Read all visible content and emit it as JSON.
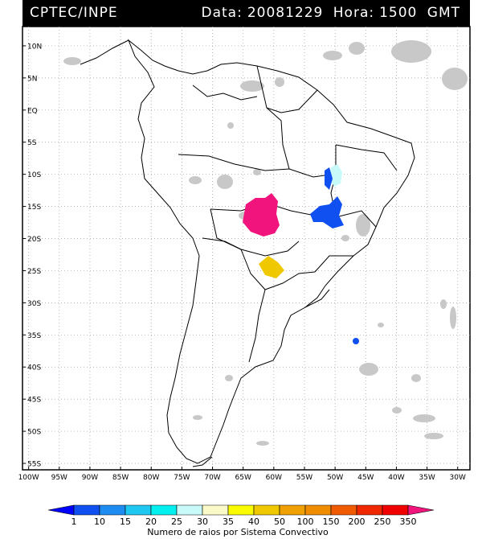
{
  "header": {
    "source": "CPTEC/INPE",
    "date_label": "Data:",
    "date_value": "20081229",
    "hour_label": "Hora:",
    "hour_value": "1500",
    "tz": "GMT"
  },
  "axes": {
    "lat_labels": [
      "10N",
      "5N",
      "EQ",
      "5S",
      "10S",
      "15S",
      "20S",
      "25S",
      "30S",
      "35S",
      "40S",
      "45S",
      "50S",
      "55S"
    ],
    "lon_labels": [
      "100W",
      "95W",
      "90W",
      "85W",
      "80W",
      "75W",
      "70W",
      "65W",
      "60W",
      "55W",
      "50W",
      "45W",
      "40W",
      "35W",
      "30W"
    ],
    "lat_range": [
      -56,
      13
    ],
    "lon_range": [
      -101,
      -28
    ],
    "grid": "dotted"
  },
  "colorbar": {
    "ticks": [
      "1",
      "10",
      "15",
      "20",
      "25",
      "30",
      "35",
      "40",
      "50",
      "100",
      "150",
      "200",
      "250",
      "350"
    ],
    "colors": [
      "#0000ff",
      "#1050f0",
      "#1e8cf0",
      "#1ec8f0",
      "#00f0f0",
      "#c8fafa",
      "#fafac8",
      "#fafa00",
      "#f0c800",
      "#f0a000",
      "#f08c00",
      "#f05a00",
      "#f02800",
      "#f00000",
      "#f0147c"
    ],
    "title": "Numero de raios por Sistema Convectivo"
  },
  "systems": [
    {
      "name": "mato-grosso",
      "color": "#f0147c",
      "lon": -60.5,
      "lat": -17.5
    },
    {
      "name": "minas-gerais",
      "color": "#1050f0",
      "lon": -48.5,
      "lat": -16.5
    },
    {
      "name": "goias-north",
      "color": "#c8fafa",
      "lon": -47.5,
      "lat": -11.5
    },
    {
      "name": "paraguay",
      "color": "#f0c800",
      "lon": -58.5,
      "lat": -24.5
    },
    {
      "name": "atlantic",
      "color": "#1050f0",
      "lon": -45,
      "lat": -36
    }
  ]
}
